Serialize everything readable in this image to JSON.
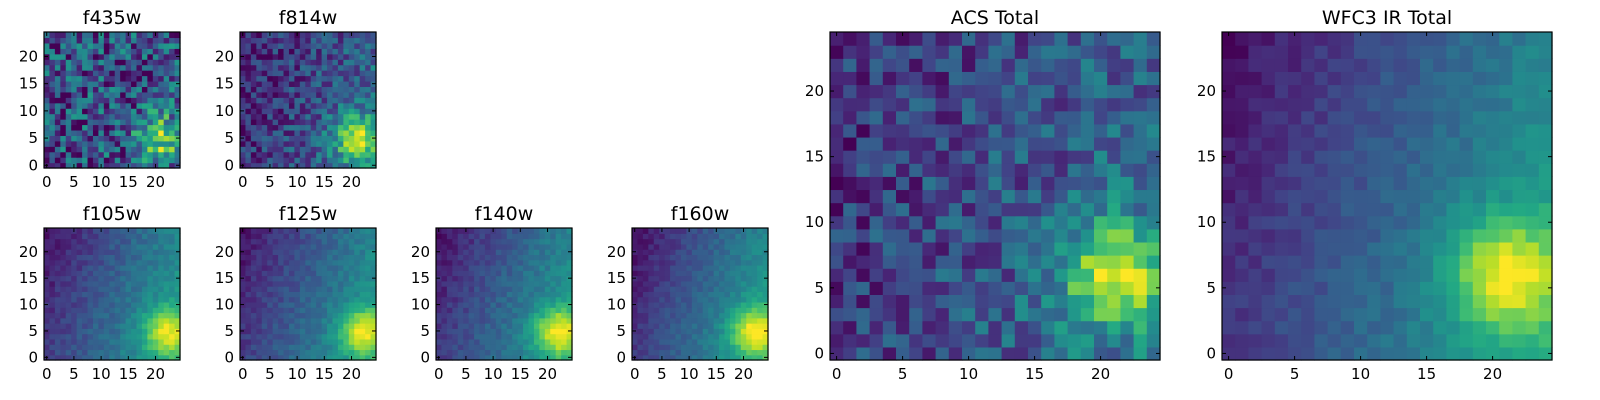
{
  "colormap": "viridis",
  "image_size": 25,
  "panels": [
    {
      "id": "f435w",
      "title": "f435w",
      "x_ticks": [
        "0",
        "5",
        "10",
        "15",
        "20"
      ],
      "y_ticks": [
        "0",
        "5",
        "10",
        "15",
        "20"
      ],
      "noise": 0.3,
      "gradient": 0.05,
      "blob": 0.55,
      "base": 0.22,
      "seed": 11
    },
    {
      "id": "f814w",
      "title": "f814w",
      "x_ticks": [
        "0",
        "5",
        "10",
        "15",
        "20"
      ],
      "y_ticks": [
        "0",
        "5",
        "10",
        "15",
        "20"
      ],
      "noise": 0.18,
      "gradient": 0.3,
      "blob": 0.6,
      "base": 0.08,
      "seed": 23
    },
    {
      "id": "f105w",
      "title": "f105w",
      "x_ticks": [
        "0",
        "5",
        "10",
        "15",
        "20"
      ],
      "y_ticks": [
        "0",
        "5",
        "10",
        "15",
        "20"
      ],
      "noise": 0.06,
      "gradient": 0.55,
      "blob": 0.45,
      "base": 0.04,
      "seed": 37
    },
    {
      "id": "f125w",
      "title": "f125w",
      "x_ticks": [
        "0",
        "5",
        "10",
        "15",
        "20"
      ],
      "y_ticks": [
        "0",
        "5",
        "10",
        "15",
        "20"
      ],
      "noise": 0.06,
      "gradient": 0.52,
      "blob": 0.48,
      "base": 0.05,
      "seed": 41
    },
    {
      "id": "f140w",
      "title": "f140w",
      "x_ticks": [
        "0",
        "5",
        "10",
        "15",
        "20"
      ],
      "y_ticks": [
        "0",
        "5",
        "10",
        "15",
        "20"
      ],
      "noise": 0.06,
      "gradient": 0.55,
      "blob": 0.5,
      "base": 0.04,
      "seed": 53
    },
    {
      "id": "f160w",
      "title": "f160w",
      "x_ticks": [
        "0",
        "5",
        "10",
        "15",
        "20"
      ],
      "y_ticks": [
        "0",
        "5",
        "10",
        "15",
        "20"
      ],
      "noise": 0.05,
      "gradient": 0.58,
      "blob": 0.5,
      "base": 0.03,
      "seed": 67
    },
    {
      "id": "acs-total",
      "title": "ACS Total",
      "x_ticks": [
        "0",
        "5",
        "10",
        "15",
        "20"
      ],
      "y_ticks": [
        "0",
        "5",
        "10",
        "15",
        "20"
      ],
      "noise": 0.18,
      "gradient": 0.22,
      "blob": 0.6,
      "base": 0.14,
      "seed": 79
    },
    {
      "id": "wfc3-ir-total",
      "title": "WFC3 IR Total",
      "x_ticks": [
        "0",
        "5",
        "10",
        "15",
        "20"
      ],
      "y_ticks": [
        "0",
        "5",
        "10",
        "15",
        "20"
      ],
      "noise": 0.05,
      "gradient": 0.55,
      "blob": 0.52,
      "base": 0.03,
      "seed": 97
    }
  ],
  "chart_data": [
    {
      "type": "heatmap",
      "title": "f435w",
      "x_range": [
        -0.5,
        24.5
      ],
      "y_range": [
        -0.5,
        24.5
      ],
      "x_ticks": [
        0,
        5,
        10,
        15,
        20
      ],
      "y_ticks": [
        0,
        5,
        10,
        15,
        20
      ],
      "peak": {
        "x": 21,
        "y": 5
      }
    },
    {
      "type": "heatmap",
      "title": "f814w",
      "x_range": [
        -0.5,
        24.5
      ],
      "y_range": [
        -0.5,
        24.5
      ],
      "x_ticks": [
        0,
        5,
        10,
        15,
        20
      ],
      "y_ticks": [
        0,
        5,
        10,
        15,
        20
      ],
      "peak": {
        "x": 21,
        "y": 5
      }
    },
    {
      "type": "heatmap",
      "title": "f105w",
      "x_range": [
        -0.5,
        24.5
      ],
      "y_range": [
        -0.5,
        24.5
      ],
      "x_ticks": [
        0,
        5,
        10,
        15,
        20
      ],
      "y_ticks": [
        0,
        5,
        10,
        15,
        20
      ],
      "peak": {
        "x": 22,
        "y": 5
      }
    },
    {
      "type": "heatmap",
      "title": "f125w",
      "x_range": [
        -0.5,
        24.5
      ],
      "y_range": [
        -0.5,
        24.5
      ],
      "x_ticks": [
        0,
        5,
        10,
        15,
        20
      ],
      "y_ticks": [
        0,
        5,
        10,
        15,
        20
      ],
      "peak": {
        "x": 22,
        "y": 5
      }
    },
    {
      "type": "heatmap",
      "title": "f140w",
      "x_range": [
        -0.5,
        24.5
      ],
      "y_range": [
        -0.5,
        24.5
      ],
      "x_ticks": [
        0,
        5,
        10,
        15,
        20
      ],
      "y_ticks": [
        0,
        5,
        10,
        15,
        20
      ],
      "peak": {
        "x": 22,
        "y": 5
      }
    },
    {
      "type": "heatmap",
      "title": "f160w",
      "x_range": [
        -0.5,
        24.5
      ],
      "y_range": [
        -0.5,
        24.5
      ],
      "x_ticks": [
        0,
        5,
        10,
        15,
        20
      ],
      "y_ticks": [
        0,
        5,
        10,
        15,
        20
      ],
      "peak": {
        "x": 22,
        "y": 5
      }
    },
    {
      "type": "heatmap",
      "title": "ACS Total",
      "x_range": [
        -0.5,
        24.5
      ],
      "y_range": [
        -0.5,
        24.5
      ],
      "x_ticks": [
        0,
        5,
        10,
        15,
        20
      ],
      "y_ticks": [
        0,
        5,
        10,
        15,
        20
      ],
      "peak": {
        "x": 21,
        "y": 6
      }
    },
    {
      "type": "heatmap",
      "title": "WFC3 IR Total",
      "x_range": [
        -0.5,
        24.5
      ],
      "y_range": [
        -0.5,
        24.5
      ],
      "x_ticks": [
        0,
        5,
        10,
        15,
        20
      ],
      "y_ticks": [
        0,
        5,
        10,
        15,
        20
      ],
      "peak": {
        "x": 21,
        "y": 6
      }
    }
  ]
}
